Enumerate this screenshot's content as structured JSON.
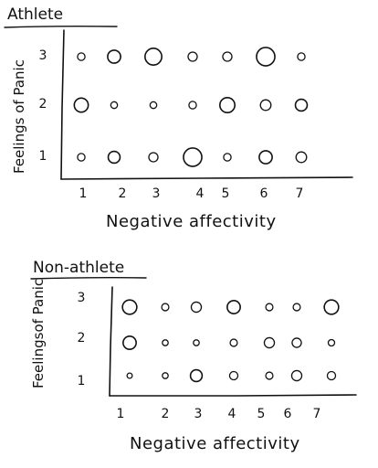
{
  "chart_data": [
    {
      "type": "scatter",
      "title": "Athlete",
      "xlabel": "Negative affectivity",
      "ylabel": "Feelings of Panic",
      "x_ticks": [
        "1",
        "2",
        "3",
        "4",
        "5",
        "6",
        "7"
      ],
      "y_ticks": [
        "1",
        "2",
        "3"
      ],
      "grid": false,
      "points": [
        {
          "x": 1,
          "y": 3,
          "size": 1
        },
        {
          "x": 2,
          "y": 3,
          "size": 3
        },
        {
          "x": 3,
          "y": 3,
          "size": 5
        },
        {
          "x": 4,
          "y": 3,
          "size": 1.5
        },
        {
          "x": 5,
          "y": 3,
          "size": 1.5
        },
        {
          "x": 6,
          "y": 3,
          "size": 6
        },
        {
          "x": 7,
          "y": 3,
          "size": 1
        },
        {
          "x": 1,
          "y": 2,
          "size": 3.5
        },
        {
          "x": 2,
          "y": 2,
          "size": 0.8
        },
        {
          "x": 3,
          "y": 2,
          "size": 0.8
        },
        {
          "x": 4,
          "y": 2,
          "size": 1
        },
        {
          "x": 5,
          "y": 2,
          "size": 4
        },
        {
          "x": 6,
          "y": 2,
          "size": 2
        },
        {
          "x": 7,
          "y": 2,
          "size": 2.5
        },
        {
          "x": 1,
          "y": 1,
          "size": 1
        },
        {
          "x": 2,
          "y": 1,
          "size": 2.5
        },
        {
          "x": 3,
          "y": 1,
          "size": 1.5
        },
        {
          "x": 4,
          "y": 1,
          "size": 6
        },
        {
          "x": 5,
          "y": 1,
          "size": 1
        },
        {
          "x": 6,
          "y": 1,
          "size": 3
        },
        {
          "x": 7,
          "y": 1,
          "size": 2
        }
      ]
    },
    {
      "type": "scatter",
      "title": "Non-athlete",
      "xlabel": "Negative affectivity",
      "ylabel": "Feelingsof Panic",
      "x_ticks": [
        "1",
        "2",
        "3",
        "4",
        "5",
        "6",
        "7"
      ],
      "y_ticks": [
        "1",
        "2",
        "3"
      ],
      "grid": false,
      "points": [
        {
          "x": 1,
          "y": 3,
          "size": 6
        },
        {
          "x": 2,
          "y": 3,
          "size": 1.5
        },
        {
          "x": 3,
          "y": 3,
          "size": 3
        },
        {
          "x": 4,
          "y": 3,
          "size": 5
        },
        {
          "x": 5,
          "y": 3,
          "size": 1.5
        },
        {
          "x": 6,
          "y": 3,
          "size": 1.5
        },
        {
          "x": 7,
          "y": 3,
          "size": 6
        },
        {
          "x": 1,
          "y": 2,
          "size": 5
        },
        {
          "x": 2,
          "y": 2,
          "size": 1
        },
        {
          "x": 3,
          "y": 2,
          "size": 1
        },
        {
          "x": 4,
          "y": 2,
          "size": 1.5
        },
        {
          "x": 5,
          "y": 2,
          "size": 3
        },
        {
          "x": 6,
          "y": 2,
          "size": 2.5
        },
        {
          "x": 7,
          "y": 2,
          "size": 1.2
        },
        {
          "x": 1,
          "y": 1,
          "size": 0.8
        },
        {
          "x": 2,
          "y": 1,
          "size": 1
        },
        {
          "x": 3,
          "y": 1,
          "size": 4
        },
        {
          "x": 4,
          "y": 1,
          "size": 2
        },
        {
          "x": 5,
          "y": 1,
          "size": 1.5
        },
        {
          "x": 6,
          "y": 1,
          "size": 3
        },
        {
          "x": 7,
          "y": 1,
          "size": 2
        }
      ]
    }
  ]
}
